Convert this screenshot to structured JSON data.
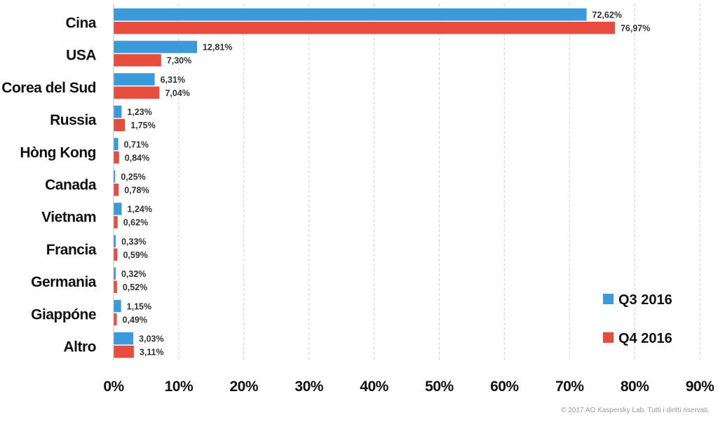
{
  "chart_data": {
    "type": "bar",
    "orientation": "horizontal",
    "categories": [
      "Cina",
      "USA",
      "Corea del Sud",
      "Russia",
      "Hòng Kong",
      "Canada",
      "Vietnam",
      "Francia",
      "Germania",
      "Giappóne",
      "Altro"
    ],
    "series": [
      {
        "name": "Q3 2016",
        "color": "#3b9ad9",
        "values": [
          72.62,
          12.81,
          6.31,
          1.23,
          0.71,
          0.25,
          1.24,
          0.33,
          0.32,
          1.15,
          3.03
        ],
        "labels": [
          "72,62%",
          "12,81%",
          "6,31%",
          "1,23%",
          "0,71%",
          "0,25%",
          "1,24%",
          "0,33%",
          "0,32%",
          "1,15%",
          "3,03%"
        ]
      },
      {
        "name": "Q4 2016",
        "color": "#e84c3d",
        "values": [
          76.97,
          7.3,
          7.04,
          1.75,
          0.84,
          0.78,
          0.62,
          0.59,
          0.52,
          0.49,
          3.11
        ],
        "labels": [
          "76,97%",
          "7,30%",
          "7,04%",
          "1,75%",
          "0,84%",
          "0,78%",
          "0,62%",
          "0,59%",
          "0,52%",
          "0,49%",
          "3,11%"
        ]
      }
    ],
    "xlim": [
      0,
      90
    ],
    "xticks": [
      0,
      10,
      20,
      30,
      40,
      50,
      60,
      70,
      80,
      90
    ],
    "xtick_labels": [
      "0%",
      "10%",
      "20%",
      "30%",
      "40%",
      "50%",
      "60%",
      "70%",
      "80%",
      "90%"
    ],
    "grid": "vertical dashed",
    "legend_position": "bottom-right"
  },
  "footer": {
    "copyright": "© 2017 AO Kaspersky Lab. Tutti i diritti riservati."
  }
}
